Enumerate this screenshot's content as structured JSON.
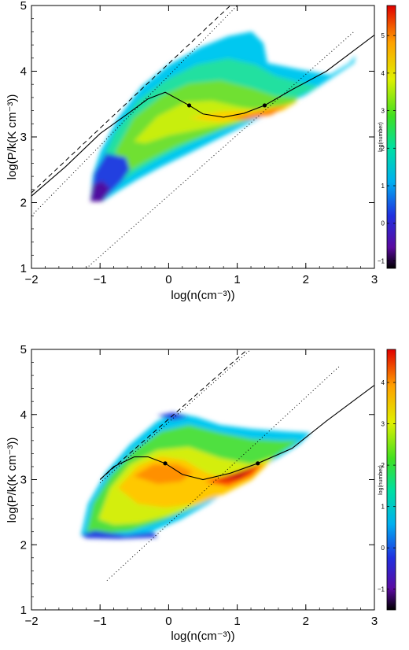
{
  "chart_data": [
    {
      "type": "heatmap",
      "xlabel": "log(n(cm⁻³))",
      "ylabel": "log(P/k(K cm⁻³))",
      "xlim": [
        -2,
        3
      ],
      "ylim": [
        1,
        5
      ],
      "xticks": [
        -2,
        -1,
        0,
        1,
        2,
        3
      ],
      "yticks": [
        1,
        2,
        3,
        4,
        5
      ],
      "colorbar": {
        "label": "log(number)",
        "range": [
          -1.2,
          5.8
        ],
        "ticks": [
          -1,
          0,
          1,
          2,
          3,
          4,
          5
        ]
      },
      "curve": {
        "x": [
          -2,
          -1.5,
          -1,
          -0.6,
          -0.3,
          -0.05,
          0.3,
          0.5,
          0.8,
          1.1,
          1.4,
          1.8,
          2.3,
          3.0
        ],
        "y": [
          2.1,
          2.55,
          3.05,
          3.35,
          3.58,
          3.68,
          3.48,
          3.35,
          3.3,
          3.36,
          3.48,
          3.72,
          4.0,
          4.55
        ]
      },
      "markers": [
        {
          "x": 0.3,
          "y": 3.48
        },
        {
          "x": 1.4,
          "y": 3.48
        }
      ],
      "dashed_line": {
        "x": [
          -2,
          0.9
        ],
        "y": [
          2.15,
          5.0
        ]
      },
      "dotted_lines": [
        {
          "x": [
            -2,
            1.0
          ],
          "y": [
            1.8,
            5.0
          ]
        },
        {
          "x": [
            -1.2,
            2.7
          ],
          "y": [
            1.0,
            4.6
          ]
        }
      ]
    },
    {
      "type": "heatmap",
      "xlabel": "log(n(cm⁻³))",
      "ylabel": "log(P/k(K cm⁻³))",
      "xlim": [
        -2,
        3
      ],
      "ylim": [
        1,
        5
      ],
      "xticks": [
        -2,
        -1,
        0,
        1,
        2,
        3
      ],
      "yticks": [
        1,
        2,
        3,
        4,
        5
      ],
      "colorbar": {
        "label": "log(number)",
        "range": [
          -1.5,
          4.8
        ],
        "ticks": [
          -1,
          0,
          1,
          2,
          3,
          4
        ]
      },
      "curve": {
        "x": [
          -1,
          -0.8,
          -0.5,
          -0.3,
          -0.05,
          0.2,
          0.5,
          0.9,
          1.3,
          1.8,
          2.3,
          3.0
        ],
        "y": [
          3.0,
          3.2,
          3.35,
          3.35,
          3.25,
          3.08,
          3.0,
          3.1,
          3.25,
          3.48,
          3.9,
          4.45
        ]
      },
      "markers": [
        {
          "x": -0.05,
          "y": 3.25
        },
        {
          "x": 1.3,
          "y": 3.25
        }
      ],
      "dashed_line": {
        "x": [
          -1,
          1.15
        ],
        "y": [
          3.0,
          5.0
        ]
      },
      "dotted_lines": [
        {
          "x": [
            -1,
            1.2
          ],
          "y": [
            2.95,
            5.0
          ]
        },
        {
          "x": [
            -0.9,
            2.5
          ],
          "y": [
            1.45,
            4.75
          ]
        }
      ]
    }
  ]
}
